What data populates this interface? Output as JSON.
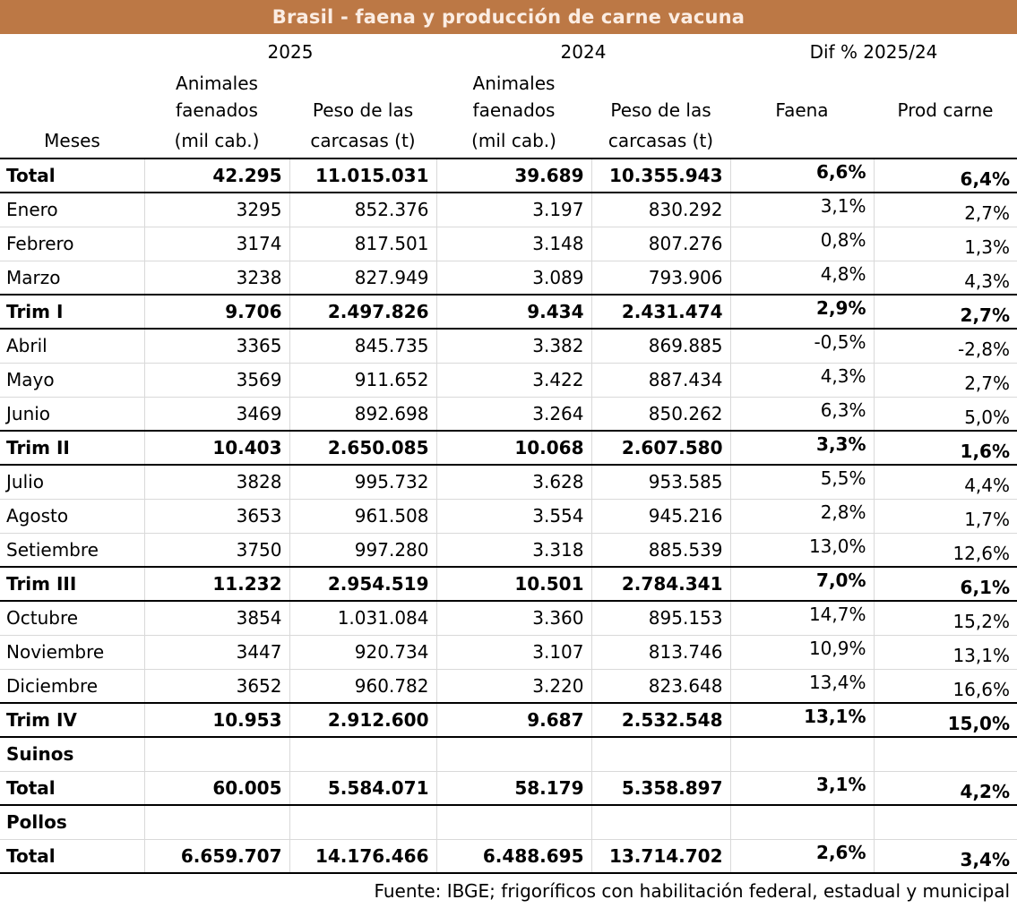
{
  "title": "Brasil - faena y producción de carne vacuna",
  "colors": {
    "title_bg": "#BC7845",
    "title_text": "#FBEDE3",
    "grid_line": "#D9D9D9",
    "strong_line": "#000000"
  },
  "header": {
    "group_2025": "2025",
    "group_2024": "2024",
    "group_dif": "Dif % 2025/24",
    "animales": "Animales",
    "faenados": "faenados",
    "peso": "Peso de las",
    "mil_cab": "(mil cab.)",
    "carcasas": "carcasas (t)",
    "faena": "Faena",
    "prod_carne": "Prod carne",
    "meses": "Meses"
  },
  "chart_data": {
    "type": "table",
    "title": "Brasil - faena y producción de carne vacuna",
    "column_groups": [
      "2025",
      "2024",
      "Dif % 2025/24"
    ],
    "columns": [
      "Meses",
      "Animales faenados (mil cab.) 2025",
      "Peso de las carcasas (t) 2025",
      "Animales faenados (mil cab.) 2024",
      "Peso de las carcasas (t) 2024",
      "Dif % Faena",
      "Dif % Prod carne"
    ],
    "rows": [
      {
        "label": "Total",
        "type": "grand",
        "values": [
          "42.295",
          "11.015.031",
          "39.689",
          "10.355.943",
          "6,6%",
          "6,4%"
        ]
      },
      {
        "label": "Enero",
        "type": "month",
        "values": [
          "3295",
          "852.376",
          "3.197",
          "830.292",
          "3,1%",
          "2,7%"
        ]
      },
      {
        "label": "Febrero",
        "type": "month",
        "values": [
          "3174",
          "817.501",
          "3.148",
          "807.276",
          "0,8%",
          "1,3%"
        ]
      },
      {
        "label": "Marzo",
        "type": "month",
        "values": [
          "3238",
          "827.949",
          "3.089",
          "793.906",
          "4,8%",
          "4,3%"
        ]
      },
      {
        "label": "Trim I",
        "type": "trim",
        "values": [
          "9.706",
          "2.497.826",
          "9.434",
          "2.431.474",
          "2,9%",
          "2,7%"
        ]
      },
      {
        "label": "Abril",
        "type": "month",
        "values": [
          "3365",
          "845.735",
          "3.382",
          "869.885",
          "-0,5%",
          "-2,8%"
        ]
      },
      {
        "label": "Mayo",
        "type": "month",
        "values": [
          "3569",
          "911.652",
          "3.422",
          "887.434",
          "4,3%",
          "2,7%"
        ]
      },
      {
        "label": "Junio",
        "type": "month",
        "values": [
          "3469",
          "892.698",
          "3.264",
          "850.262",
          "6,3%",
          "5,0%"
        ]
      },
      {
        "label": "Trim II",
        "type": "trim",
        "values": [
          "10.403",
          "2.650.085",
          "10.068",
          "2.607.580",
          "3,3%",
          "1,6%"
        ]
      },
      {
        "label": "Julio",
        "type": "month",
        "values": [
          "3828",
          "995.732",
          "3.628",
          "953.585",
          "5,5%",
          "4,4%"
        ]
      },
      {
        "label": "Agosto",
        "type": "month",
        "values": [
          "3653",
          "961.508",
          "3.554",
          "945.216",
          "2,8%",
          "1,7%"
        ]
      },
      {
        "label": "Setiembre",
        "type": "month",
        "values": [
          "3750",
          "997.280",
          "3.318",
          "885.539",
          "13,0%",
          "12,6%"
        ]
      },
      {
        "label": "Trim III",
        "type": "trim",
        "values": [
          "11.232",
          "2.954.519",
          "10.501",
          "2.784.341",
          "7,0%",
          "6,1%"
        ]
      },
      {
        "label": "Octubre",
        "type": "month",
        "values": [
          "3854",
          "1.031.084",
          "3.360",
          "895.153",
          "14,7%",
          "15,2%"
        ]
      },
      {
        "label": "Noviembre",
        "type": "month",
        "values": [
          "3447",
          "920.734",
          "3.107",
          "813.746",
          "10,9%",
          "13,1%"
        ]
      },
      {
        "label": "Diciembre",
        "type": "month",
        "values": [
          "3652",
          "960.782",
          "3.220",
          "823.648",
          "13,4%",
          "16,6%"
        ]
      },
      {
        "label": "Trim IV",
        "type": "trim",
        "values": [
          "10.953",
          "2.912.600",
          "9.687",
          "2.532.548",
          "13,1%",
          "15,0%"
        ]
      },
      {
        "label": "Suinos",
        "type": "section",
        "values": [
          "",
          "",
          "",
          "",
          "",
          ""
        ]
      },
      {
        "label": "Total",
        "type": "subtotal",
        "values": [
          "60.005",
          "5.584.071",
          "58.179",
          "5.358.897",
          "3,1%",
          "4,2%"
        ]
      },
      {
        "label": "Pollos",
        "type": "section",
        "values": [
          "",
          "",
          "",
          "",
          "",
          ""
        ]
      },
      {
        "label": "Total",
        "type": "subtotal",
        "values": [
          "6.659.707",
          "14.176.466",
          "6.488.695",
          "13.714.702",
          "2,6%",
          "3,4%"
        ]
      }
    ]
  },
  "footer": {
    "source": "Fuente: IBGE; frigoríficos con habilitación federal, estadual y municipal"
  }
}
